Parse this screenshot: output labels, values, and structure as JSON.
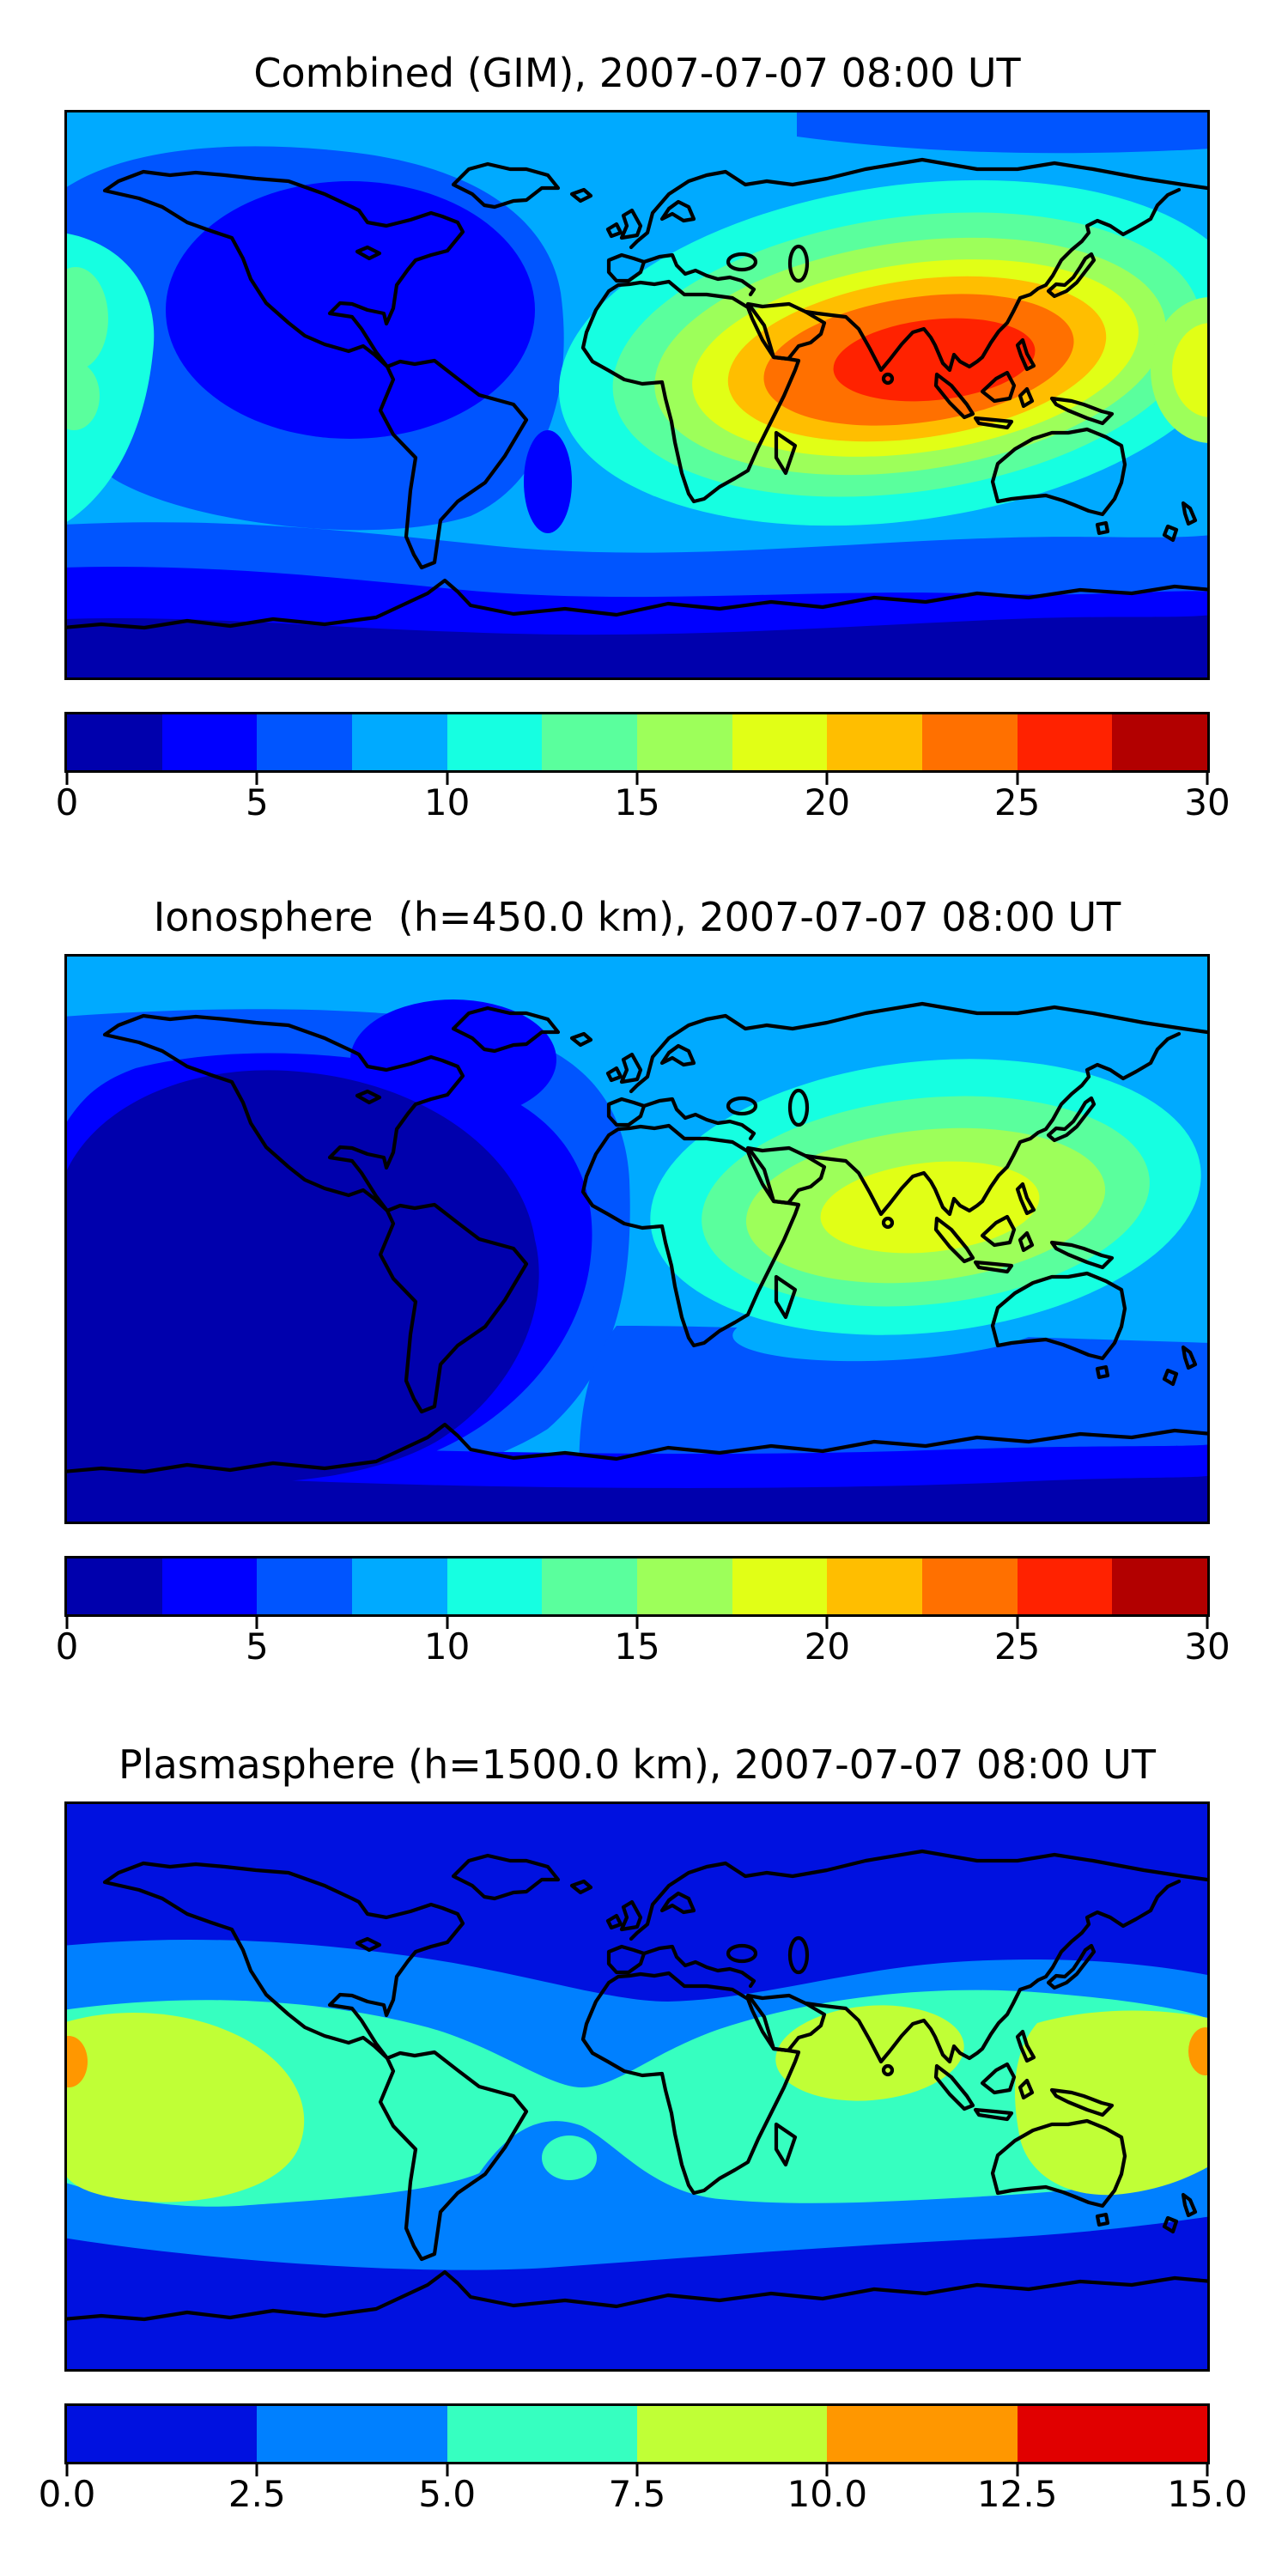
{
  "figure": {
    "background": "#ffffff",
    "text_color": "#000000",
    "coastline_color": "#000000"
  },
  "panels": [
    {
      "id": "combined",
      "title": "Combined (GIM), 2007-07-07 08:00 UT",
      "colorbar": {
        "ticks": [
          "0",
          "5",
          "10",
          "15",
          "20",
          "25",
          "30"
        ],
        "colors": [
          "#0000ad",
          "#0000ff",
          "#0055ff",
          "#00aaff",
          "#16ffe1",
          "#5aff9d",
          "#9dff5a",
          "#e1ff16",
          "#ffbe00",
          "#ff7000",
          "#ff2200",
          "#b20000"
        ]
      }
    },
    {
      "id": "ionosphere",
      "title": "Ionosphere  (h=450.0 km), 2007-07-07 08:00 UT",
      "colorbar": {
        "ticks": [
          "0",
          "5",
          "10",
          "15",
          "20",
          "25",
          "30"
        ],
        "colors": [
          "#0000ad",
          "#0000ff",
          "#0055ff",
          "#00aaff",
          "#16ffe1",
          "#5aff9d",
          "#9dff5a",
          "#e1ff16",
          "#ffbe00",
          "#ff7000",
          "#ff2200",
          "#b20000"
        ]
      }
    },
    {
      "id": "plasmasphere",
      "title": "Plasmasphere (h=1500.0 km), 2007-07-07 08:00 UT",
      "colorbar": {
        "ticks": [
          "0.0",
          "2.5",
          "5.0",
          "7.5",
          "10.0",
          "12.5",
          "15.0"
        ],
        "colors": [
          "#0011e0",
          "#0080ff",
          "#36ffc0",
          "#c0ff36",
          "#ff9700",
          "#e10000"
        ]
      }
    }
  ],
  "chart_data": [
    {
      "type": "heatmap",
      "subtype": "filled-contour-world-map",
      "title": "Combined (GIM), 2007-07-07 08:00 UT",
      "projection": "equirectangular",
      "x_range_lon": [
        -180,
        180
      ],
      "y_range_lat": [
        -90,
        90
      ],
      "contour_levels": [
        0,
        2.5,
        5,
        7.5,
        10,
        12.5,
        15,
        17.5,
        20,
        22.5,
        25,
        27.5,
        30
      ],
      "colorbar_ticks": [
        0,
        5,
        10,
        15,
        20,
        25,
        30
      ],
      "colormap": "jet (12 discrete bands)",
      "legend_position": "horizontal colorbar below map",
      "features": [
        {
          "region": "South/Southeast Asia daytime crest (India, Bay of Bengal, Indochina)",
          "approx_value": "25-27.5 peak"
        },
        {
          "region": "Surrounding Africa-Asia enhancement rings",
          "approx_value": "12.5-25"
        },
        {
          "region": "Eastern Pacific patch near left map edge",
          "approx_value": "10-15"
        },
        {
          "region": "North America night-side oval",
          "approx_value": "2.5-5"
        },
        {
          "region": "Mid/high northern latitudes background",
          "approx_value": "7.5-10"
        },
        {
          "region": "Antarctic band along bottom",
          "approx_value": "0-2.5"
        }
      ]
    },
    {
      "type": "heatmap",
      "subtype": "filled-contour-world-map",
      "title": "Ionosphere  (h=450.0 km), 2007-07-07 08:00 UT",
      "projection": "equirectangular",
      "x_range_lon": [
        -180,
        180
      ],
      "y_range_lat": [
        -90,
        90
      ],
      "contour_levels": [
        0,
        2.5,
        5,
        7.5,
        10,
        12.5,
        15,
        17.5,
        20,
        22.5,
        25,
        27.5,
        30
      ],
      "colorbar_ticks": [
        0,
        5,
        10,
        15,
        20,
        25,
        30
      ],
      "colormap": "jet (12 discrete bands)",
      "legend_position": "horizontal colorbar below map",
      "features": [
        {
          "region": "Yellow core over India / Bay of Bengal",
          "approx_value": "17.5-20 peak"
        },
        {
          "region": "Africa-Asia enhancement rings",
          "approx_value": "7.5-17.5"
        },
        {
          "region": "Large night-side minimum over Americas and Atlantic",
          "approx_value": "0-2.5"
        },
        {
          "region": "Northern high-latitude band",
          "approx_value": "7.5-10"
        },
        {
          "region": "Southern Indian Ocean streak",
          "approx_value": "7.5-10"
        },
        {
          "region": "Antarctic band along bottom",
          "approx_value": "0-2.5"
        }
      ]
    },
    {
      "type": "heatmap",
      "subtype": "filled-contour-world-map",
      "title": "Plasmasphere (h=1500.0 km), 2007-07-07 08:00 UT",
      "projection": "equirectangular",
      "x_range_lon": [
        -180,
        180
      ],
      "y_range_lat": [
        -90,
        90
      ],
      "contour_levels": [
        0,
        2.5,
        5,
        7.5,
        10,
        12.5,
        15
      ],
      "colorbar_ticks": [
        0.0,
        2.5,
        5.0,
        7.5,
        10.0,
        12.5,
        15.0
      ],
      "colormap": "jet (6 discrete bands)",
      "legend_position": "horizontal colorbar below map",
      "features": [
        {
          "region": "Equatorial belt spanning all longitudes",
          "approx_value": "5-7.5"
        },
        {
          "region": "Green-yellow lobes: central Pacific (left), India, western Pacific (right)",
          "approx_value": "7.5-10"
        },
        {
          "region": "Small orange spots at left and right map edges near equator",
          "approx_value": "10-12.5"
        },
        {
          "region": "Mid-latitude transition bands",
          "approx_value": "2.5-5"
        },
        {
          "region": "High latitudes north and south",
          "approx_value": "0-2.5"
        }
      ]
    }
  ]
}
